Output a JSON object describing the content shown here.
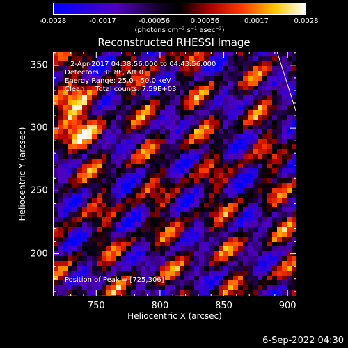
{
  "colorbar": {
    "ticks": [
      {
        "label": "-0.0028",
        "value": -0.0028
      },
      {
        "label": "-0.0017",
        "value": -0.0017
      },
      {
        "label": "-0.00056",
        "value": -0.00056
      },
      {
        "label": "0.00056",
        "value": 0.00056
      },
      {
        "label": "0.0017",
        "value": 0.0017
      },
      {
        "label": "0.0028",
        "value": 0.0028
      }
    ],
    "units": "(photons cm⁻² s⁻¹ asec⁻²)",
    "range": [
      -0.0028,
      0.0028
    ]
  },
  "chart_data": {
    "type": "heatmap",
    "title": "Reconstructed RHESSI Image",
    "xlabel": "Heliocentric X (arcsec)",
    "ylabel": "Heliocentric Y (arcsec)",
    "xlim": [
      716,
      907
    ],
    "ylim": [
      166,
      361
    ],
    "xticks": [
      750,
      800,
      850,
      900
    ],
    "yticks": [
      200,
      250,
      300,
      350
    ],
    "annotations": {
      "time": "2-Apr-2017 04:38:56.000 to 04:43:56.000",
      "detectors": "Detectors: 3F 8F, Att 0",
      "energy": "Energy Range: 25.0 - 50.0 keV",
      "clean": "Clean     Total counts: 7.59E+03",
      "peak": "Position of Peak = [725,306]"
    },
    "colormap": "blue-black-red-yellow-white",
    "peak_position": [
      725,
      306
    ]
  },
  "timestamp": "6-Sep-2022 04:30"
}
